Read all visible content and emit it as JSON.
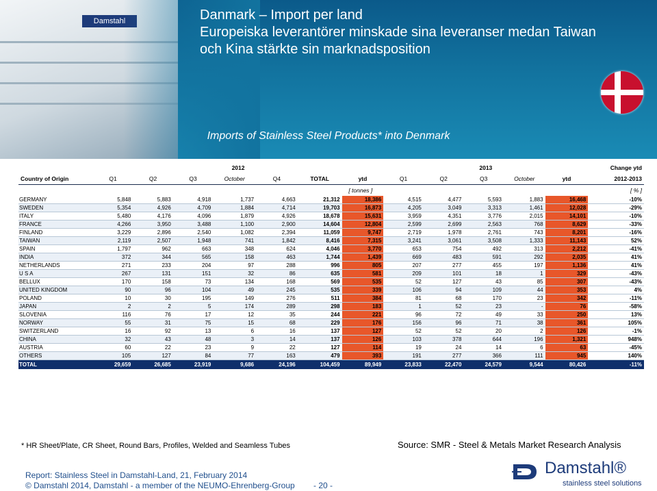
{
  "header": {
    "title_line1": "Danmark – Import per land",
    "title_line2": "Europeiska leverantörer minskade sina leveranser medan Taiwan",
    "title_line3": "och Kina stärkte sin marknadsposition",
    "subtitle": "Imports of Stainless Steel Products* into Denmark",
    "building_logo_text": "Damstahl"
  },
  "table": {
    "year1": "2012",
    "year2": "2013",
    "change_label": "Change ytd",
    "change_period": "2012-2013",
    "country_header": "Country of Origin",
    "columns": [
      "Q1",
      "Q2",
      "Q3",
      "October",
      "Q4",
      "TOTAL",
      "ytd",
      "Q1",
      "Q2",
      "Q3",
      "October",
      "ytd"
    ],
    "unit_tonnes": "[ tonnes ]",
    "unit_pct": "[ % ]",
    "rows": [
      {
        "country": "GERMANY",
        "v": [
          "5,848",
          "5,883",
          "4,918",
          "1,737",
          "4,663",
          "21,312",
          "18,386",
          "4,515",
          "4,477",
          "5,593",
          "1,883",
          "16,468"
        ],
        "chg": "-10%"
      },
      {
        "country": "SWEDEN",
        "v": [
          "5,354",
          "4,926",
          "4,709",
          "1,884",
          "4,714",
          "19,703",
          "16,873",
          "4,205",
          "3,049",
          "3,313",
          "1,461",
          "12,028"
        ],
        "chg": "-29%"
      },
      {
        "country": "ITALY",
        "v": [
          "5,480",
          "4,176",
          "4,096",
          "1,879",
          "4,926",
          "18,678",
          "15,631",
          "3,959",
          "4,351",
          "3,776",
          "2,015",
          "14,101"
        ],
        "chg": "-10%"
      },
      {
        "country": "FRANCE",
        "v": [
          "4,266",
          "3,950",
          "3,488",
          "1,100",
          "2,900",
          "14,604",
          "12,804",
          "2,599",
          "2,699",
          "2,563",
          "768",
          "8,629"
        ],
        "chg": "-33%"
      },
      {
        "country": "FINLAND",
        "v": [
          "3,229",
          "2,896",
          "2,540",
          "1,082",
          "2,394",
          "11,059",
          "9,747",
          "2,719",
          "1,978",
          "2,761",
          "743",
          "8,201"
        ],
        "chg": "-16%"
      },
      {
        "country": "TAIWAN",
        "v": [
          "2,119",
          "2,507",
          "1,948",
          "741",
          "1,842",
          "8,416",
          "7,315",
          "3,241",
          "3,061",
          "3,508",
          "1,333",
          "11,143"
        ],
        "chg": "52%"
      },
      {
        "country": "SPAIN",
        "v": [
          "1,797",
          "962",
          "663",
          "348",
          "624",
          "4,046",
          "3,770",
          "653",
          "754",
          "492",
          "313",
          "2,212"
        ],
        "chg": "-41%"
      },
      {
        "country": "INDIA",
        "v": [
          "372",
          "344",
          "565",
          "158",
          "463",
          "1,744",
          "1,439",
          "669",
          "483",
          "591",
          "292",
          "2,035"
        ],
        "chg": "41%"
      },
      {
        "country": "NETHERLANDS",
        "v": [
          "271",
          "233",
          "204",
          "97",
          "288",
          "996",
          "805",
          "207",
          "277",
          "455",
          "197",
          "1,136"
        ],
        "chg": "41%"
      },
      {
        "country": "U S A",
        "v": [
          "267",
          "131",
          "151",
          "32",
          "86",
          "635",
          "581",
          "209",
          "101",
          "18",
          "1",
          "329"
        ],
        "chg": "-43%"
      },
      {
        "country": "BELLUX",
        "v": [
          "170",
          "158",
          "73",
          "134",
          "168",
          "569",
          "535",
          "52",
          "127",
          "43",
          "85",
          "307"
        ],
        "chg": "-43%"
      },
      {
        "country": "UNITED KINGDOM",
        "v": [
          "90",
          "96",
          "104",
          "49",
          "245",
          "535",
          "339",
          "106",
          "94",
          "109",
          "44",
          "353"
        ],
        "chg": "4%"
      },
      {
        "country": "POLAND",
        "v": [
          "10",
          "30",
          "195",
          "149",
          "276",
          "511",
          "384",
          "81",
          "68",
          "170",
          "23",
          "342"
        ],
        "chg": "-11%"
      },
      {
        "country": "JAPAN",
        "v": [
          "2",
          "2",
          "5",
          "174",
          "289",
          "298",
          "183",
          "1",
          "52",
          "23",
          "-",
          "76"
        ],
        "chg": "-58%"
      },
      {
        "country": "SLOVENIA",
        "v": [
          "116",
          "76",
          "17",
          "12",
          "35",
          "244",
          "221",
          "96",
          "72",
          "49",
          "33",
          "250"
        ],
        "chg": "13%"
      },
      {
        "country": "NORWAY",
        "v": [
          "55",
          "31",
          "75",
          "15",
          "68",
          "229",
          "176",
          "156",
          "96",
          "71",
          "38",
          "361"
        ],
        "chg": "105%"
      },
      {
        "country": "SWITZERLAND",
        "v": [
          "16",
          "92",
          "13",
          "6",
          "16",
          "137",
          "127",
          "52",
          "52",
          "20",
          "2",
          "126"
        ],
        "chg": "-1%"
      },
      {
        "country": "CHINA",
        "v": [
          "32",
          "43",
          "48",
          "3",
          "14",
          "137",
          "126",
          "103",
          "378",
          "644",
          "196",
          "1,321"
        ],
        "chg": "948%"
      },
      {
        "country": "AUSTRIA",
        "v": [
          "60",
          "22",
          "23",
          "9",
          "22",
          "127",
          "114",
          "19",
          "24",
          "14",
          "6",
          "63"
        ],
        "chg": "-45%"
      },
      {
        "country": "OTHERS",
        "v": [
          "105",
          "127",
          "84",
          "77",
          "163",
          "479",
          "393",
          "191",
          "277",
          "366",
          "111",
          "945"
        ],
        "chg": "140%"
      }
    ],
    "total": {
      "country": "TOTAL",
      "v": [
        "29,659",
        "26,685",
        "23,919",
        "9,686",
        "24,196",
        "104,459",
        "89,949",
        "23,833",
        "22,470",
        "24,579",
        "9,544",
        "80,426"
      ],
      "chg": "-11%"
    }
  },
  "footer": {
    "footnote": "* HR Sheet/Plate, CR Sheet, Round Bars, Profiles, Welded and Seamless Tubes",
    "source": "Source: SMR - Steel & Metals Market Research Analysis",
    "report": "Report: Stainless Steel in Damstahl-Land, 21, February 2014",
    "copyright": "© Damstahl 2014, Damstahl - a member of the NEUMO-Ehrenberg-Group",
    "page": "- 20 -",
    "brand_name": "Damstahl®",
    "brand_tagline": "stainless steel solutions"
  },
  "colors": {
    "header_blue": "#12739f",
    "ytd_orange": "#e8572a",
    "total_navy": "#0f2f6b",
    "flag_red": "#c8102e",
    "text_blue": "#1f4e8c"
  }
}
